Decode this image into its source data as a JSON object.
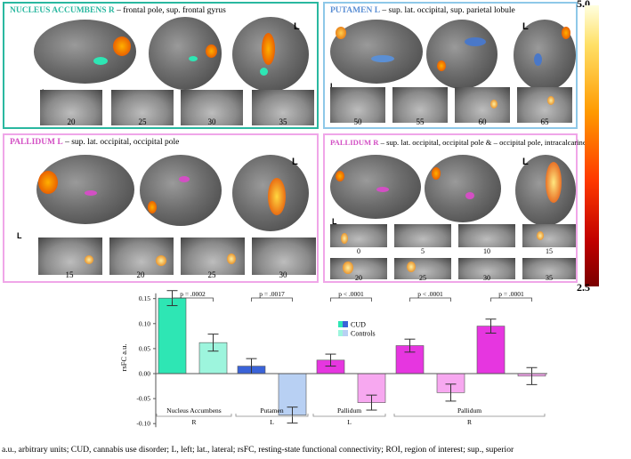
{
  "panels": [
    {
      "region": "NUCLEUS ACCUMBENS R",
      "desc": "– frontal pole, sup. frontal gyrus",
      "color": "#2ab8a0",
      "slices": [
        "20",
        "25",
        "30",
        "35"
      ]
    },
    {
      "region": "PUTAMEN L",
      "desc": "– sup. lat. occipital, sup. parietal lobule",
      "color": "#5b8fd4",
      "slices": [
        "50",
        "55",
        "60",
        "65"
      ]
    },
    {
      "region": "PALLIDUM L",
      "desc": "– sup. lat. occipital, occipital pole",
      "color": "#d34fc4",
      "slices": [
        "15",
        "20",
        "25",
        "30"
      ]
    },
    {
      "region": "PALLIDUM R",
      "desc": "– sup. lat. occipital, occipital pole & – occipital pole, intracalcarine",
      "color": "#d34fc4",
      "slices": [
        "0",
        "5",
        "10",
        "15",
        "20",
        "25",
        "30",
        "35"
      ]
    }
  ],
  "side_label": "L",
  "colorbar": {
    "max": "5.0",
    "min": "2.5"
  },
  "chart_data": {
    "type": "bar",
    "ylabel": "rsFC a.u.",
    "ylim": [
      -0.1,
      0.15
    ],
    "yticks": [
      "0.15",
      "0.10",
      "0.05",
      "0.00",
      "-0.05",
      "-0.10"
    ],
    "legend": [
      "CUD",
      "Controls"
    ],
    "groups": [
      {
        "name": "Nucleus Accumbens",
        "side": "R",
        "p": "p = .0002",
        "cud": 0.151,
        "controls": 0.062,
        "cud_err": 0.015,
        "controls_err": 0.017,
        "cud_color": "#2ee6b4",
        "controls_color": "#9df5dd"
      },
      {
        "name": "Putamen",
        "side": "L",
        "p": "p = .0017",
        "cud": 0.015,
        "controls": -0.083,
        "cud_err": 0.015,
        "controls_err": 0.016,
        "cud_color": "#3a63d8",
        "controls_color": "#b8d0f3"
      },
      {
        "name": "Pallidum",
        "side": "L",
        "p": "p < .0001",
        "cud": 0.027,
        "controls": -0.058,
        "cud_err": 0.012,
        "controls_err": 0.015,
        "cud_color": "#e636e0",
        "controls_color": "#f7a8f0"
      },
      {
        "name": "Pallidum",
        "side": "R",
        "p": "p < .0001",
        "cud": 0.056,
        "controls": -0.038,
        "cud_err": 0.013,
        "controls_err": 0.017,
        "cud_color": "#e636e0",
        "controls_color": "#f7a8f0"
      },
      {
        "name": "Pallidum",
        "side": "R",
        "p": "p = .0001",
        "cud": 0.095,
        "controls": -0.005,
        "cud_err": 0.014,
        "controls_err": 0.017,
        "cud_color": "#e636e0",
        "controls_color": "#f7a8f0"
      }
    ],
    "x_labels": [
      {
        "name": "Nucleus Accumbens",
        "side": "R"
      },
      {
        "name": "Putamen",
        "side": "L"
      },
      {
        "name": "Pallidum",
        "side": "L"
      },
      {
        "name": "Pallidum",
        "side": "R"
      }
    ]
  },
  "footnote": "a.u., arbitrary units; CUD, cannabis use disorder; L, left; lat., lateral; rsFC, resting-state functional connectivity; ROI, region of interest; sup., superior"
}
